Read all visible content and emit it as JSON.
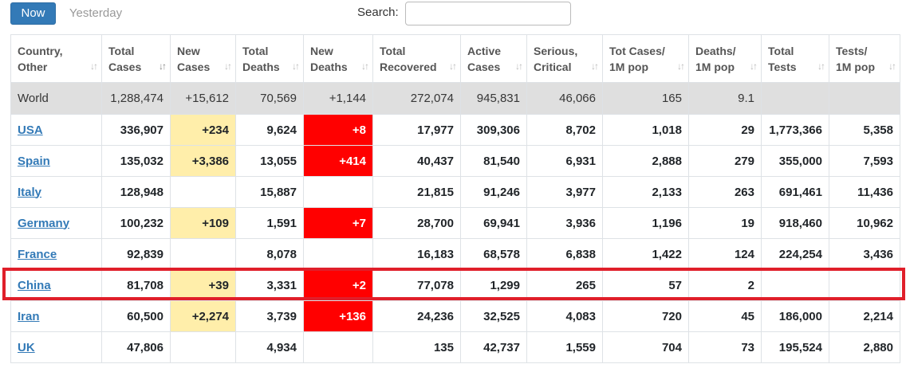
{
  "toolbar": {
    "now_label": "Now",
    "yesterday_label": "Yesterday",
    "search_label": "Search:",
    "search_value": ""
  },
  "colors": {
    "new_cases_bg": "#ffeeaa",
    "new_deaths_bg": "#ff0000",
    "world_row_bg": "#dfdfdf",
    "link": "#337ab7",
    "highlight_border": "#e01f2a",
    "now_button": "#337ab7"
  },
  "table": {
    "headers": [
      {
        "line1": "Country,",
        "line2": "Other"
      },
      {
        "line1": "Total",
        "line2": "Cases"
      },
      {
        "line1": "New",
        "line2": "Cases"
      },
      {
        "line1": "Total",
        "line2": "Deaths"
      },
      {
        "line1": "New",
        "line2": "Deaths"
      },
      {
        "line1": "Total",
        "line2": "Recovered"
      },
      {
        "line1": "Active",
        "line2": "Cases"
      },
      {
        "line1": "Serious,",
        "line2": "Critical"
      },
      {
        "line1": "Tot Cases/",
        "line2": "1M pop"
      },
      {
        "line1": "Deaths/",
        "line2": "1M pop"
      },
      {
        "line1": "Total",
        "line2": "Tests"
      },
      {
        "line1": "Tests/",
        "line2": "1M pop"
      }
    ],
    "sort_icon": "sort-arrows-icon",
    "sorted_column": 1,
    "world": [
      "World",
      "1,288,474",
      "+15,612",
      "70,569",
      "+1,144",
      "272,074",
      "945,831",
      "46,066",
      "165",
      "9.1",
      "",
      ""
    ],
    "rows": [
      [
        "USA",
        "336,907",
        "+234",
        "9,624",
        "+8",
        "17,977",
        "309,306",
        "8,702",
        "1,018",
        "29",
        "1,773,366",
        "5,358"
      ],
      [
        "Spain",
        "135,032",
        "+3,386",
        "13,055",
        "+414",
        "40,437",
        "81,540",
        "6,931",
        "2,888",
        "279",
        "355,000",
        "7,593"
      ],
      [
        "Italy",
        "128,948",
        "",
        "15,887",
        "",
        "21,815",
        "91,246",
        "3,977",
        "2,133",
        "263",
        "691,461",
        "11,436"
      ],
      [
        "Germany",
        "100,232",
        "+109",
        "1,591",
        "+7",
        "28,700",
        "69,941",
        "3,936",
        "1,196",
        "19",
        "918,460",
        "10,962"
      ],
      [
        "France",
        "92,839",
        "",
        "8,078",
        "",
        "16,183",
        "68,578",
        "6,838",
        "1,422",
        "124",
        "224,254",
        "3,436"
      ],
      [
        "China",
        "81,708",
        "+39",
        "3,331",
        "+2",
        "77,078",
        "1,299",
        "265",
        "57",
        "2",
        "",
        ""
      ],
      [
        "Iran",
        "60,500",
        "+2,274",
        "3,739",
        "+136",
        "24,236",
        "32,525",
        "4,083",
        "720",
        "45",
        "186,000",
        "2,214"
      ],
      [
        "UK",
        "47,806",
        "",
        "4,934",
        "",
        "135",
        "42,737",
        "1,559",
        "704",
        "73",
        "195,524",
        "2,880"
      ]
    ]
  }
}
